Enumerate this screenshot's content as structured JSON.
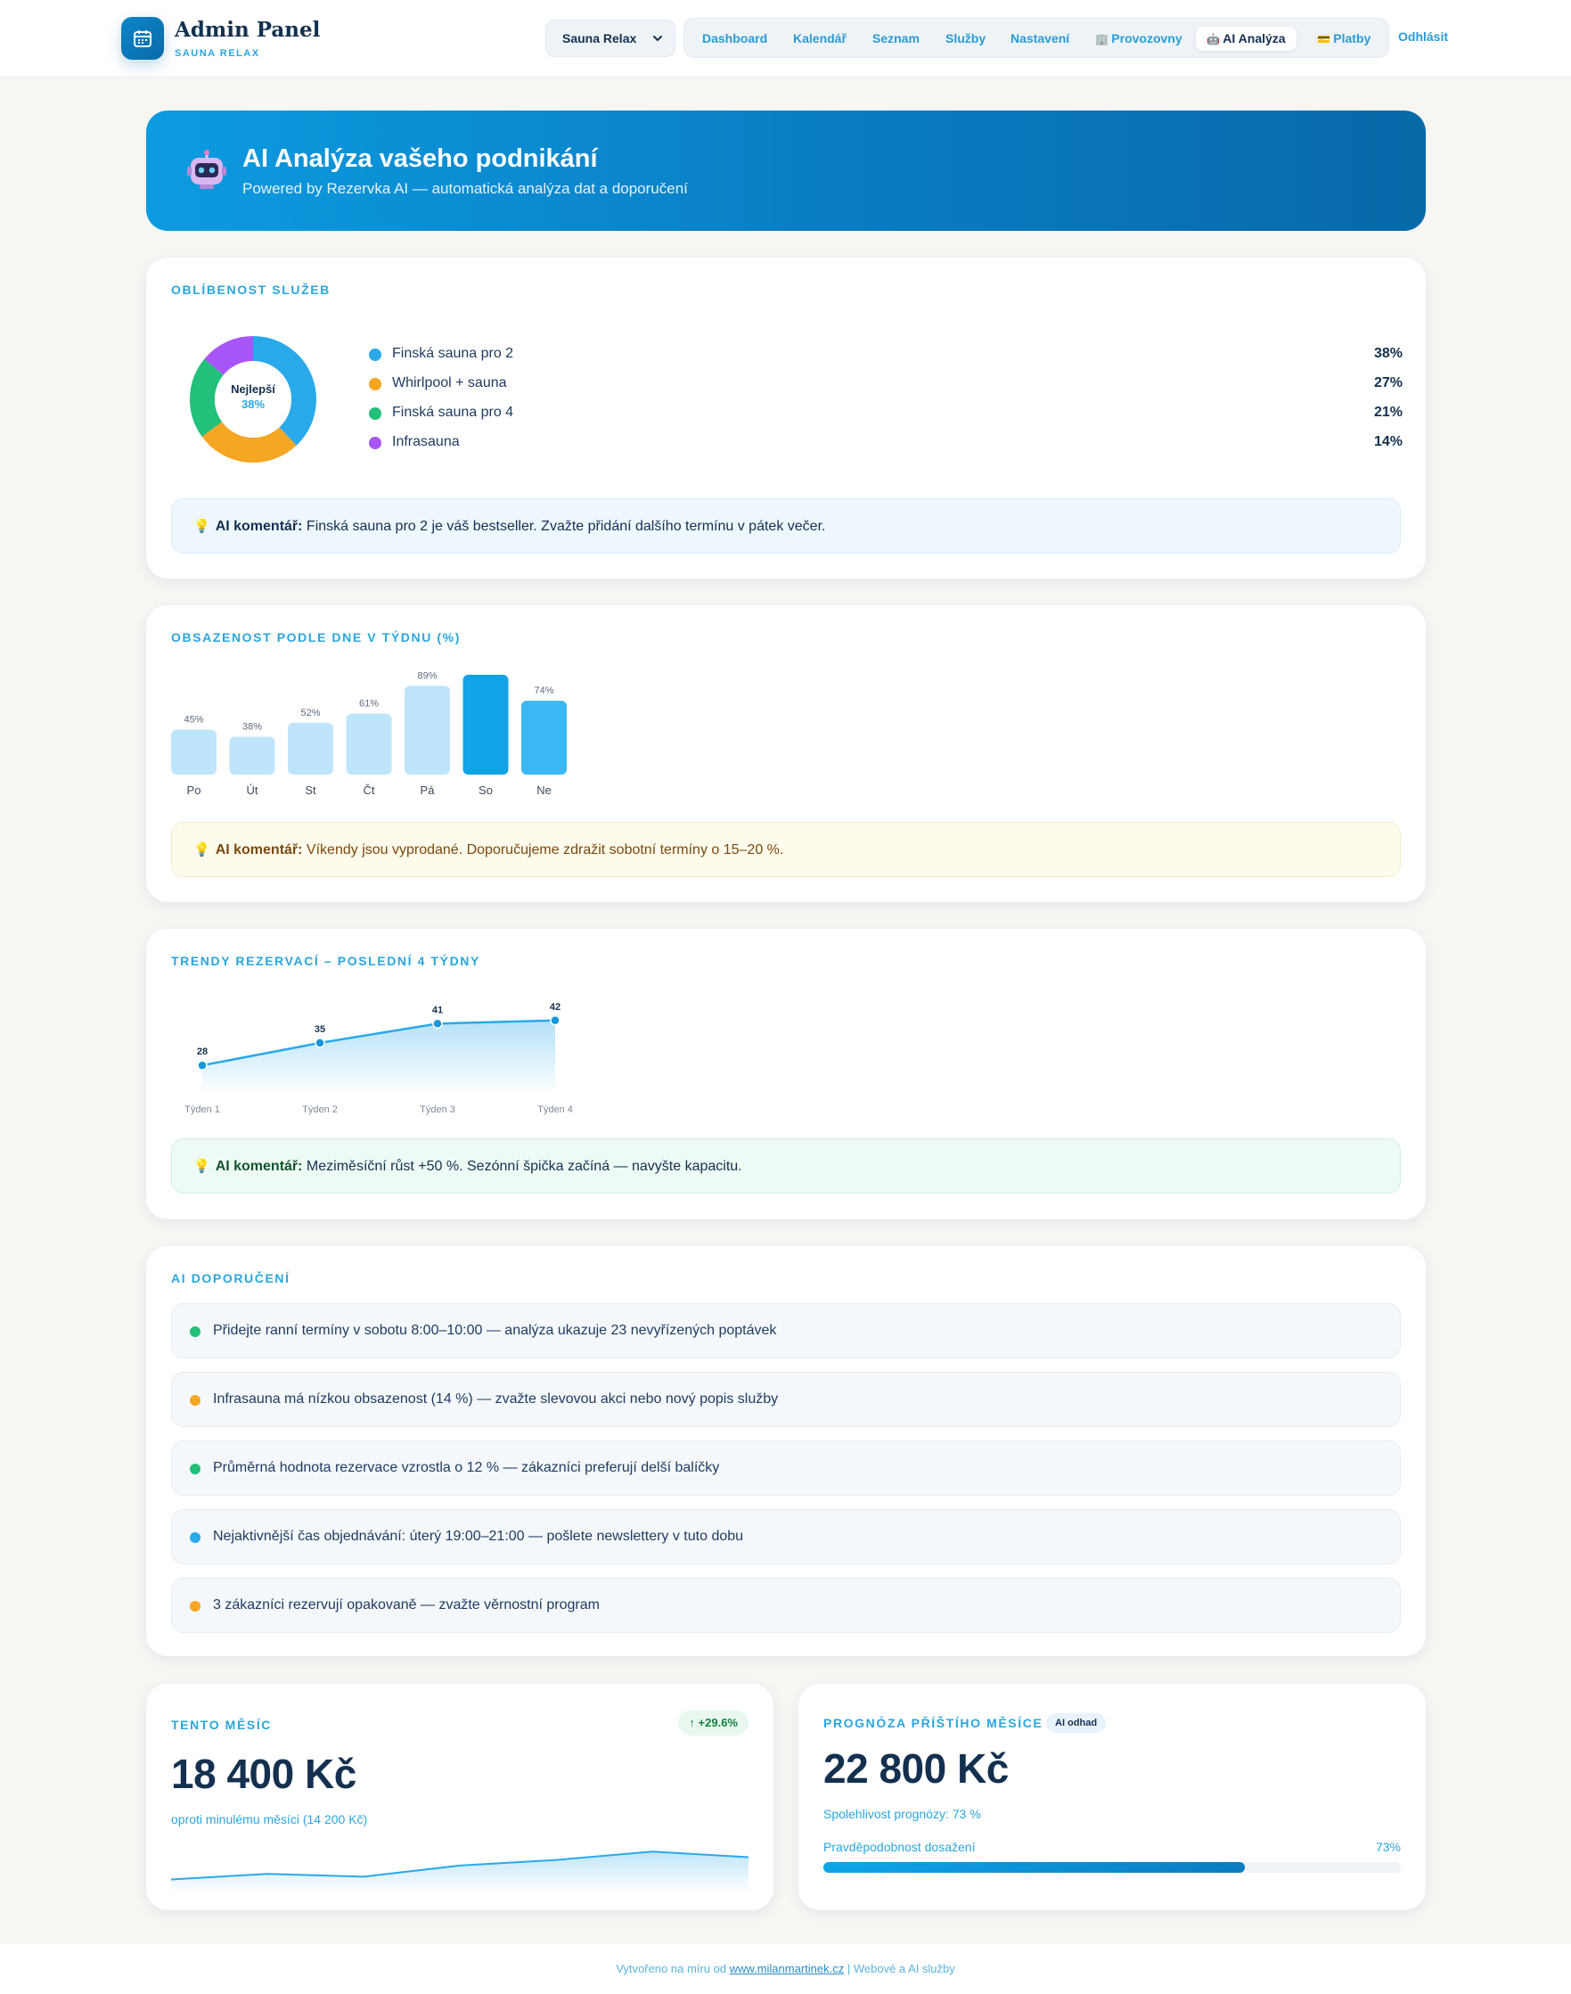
{
  "header": {
    "title": "Admin Panel",
    "subtitle": "SAUNA RELAX",
    "location_select": "Sauna Relax",
    "nav": [
      "Dashboard",
      "Kalendář",
      "Seznam",
      "Služby",
      "Nastavení",
      "Provozovny",
      "AI Analýza",
      "Platby"
    ],
    "active_nav": "AI Analýza",
    "logout": "Odhlásit"
  },
  "hero": {
    "title": "AI Analýza vašeho podnikání",
    "subtitle": "Powered by Rezervka AI — automatická analýza dat a doporučení"
  },
  "popularity": {
    "title": "OBLÍBENOST SLUŽEB",
    "center_label": "Nejlepší",
    "center_value": "38%",
    "items": [
      {
        "label": "Finská sauna pro 2",
        "value": "38%",
        "color": "#29a9ea"
      },
      {
        "label": "Whirlpool + sauna",
        "value": "27%",
        "color": "#f5a623"
      },
      {
        "label": "Finská sauna pro 4",
        "value": "21%",
        "color": "#22c07a"
      },
      {
        "label": "Infrasauna",
        "value": "14%",
        "color": "#a855f7"
      }
    ],
    "comment_label": "AI komentář:",
    "comment_text": " Finská sauna pro 2 je váš bestseller. Zvažte přidání dalšího termínu v pátek večer."
  },
  "occupancy": {
    "title": "OBSAZENOST PODLE DNE V TÝDNU (%)",
    "comment_label": "AI komentář:",
    "comment_text": " Víkendy jsou vyprodané. Doporučujeme zdražit sobotní termíny o 15–20 %."
  },
  "trends": {
    "title": "TRENDY REZERVACÍ – POSLEDNÍ 4 TÝDNY",
    "comment_label": "AI komentář:",
    "comment_text": " Meziměsíční růst +50 %. Sezónní špička začíná — navyšte kapacitu."
  },
  "recommendations": {
    "title": "AI DOPORUČENÍ",
    "items": [
      {
        "text": "Přidejte ranní termíny v sobotu 8:00–10:00 — analýza ukazuje 23 nevyřízených poptávek",
        "color": "#22c07a"
      },
      {
        "text": "Infrasauna má nízkou obsazenost (14 %) — zvažte slevovou akci nebo nový popis služby",
        "color": "#f5a623"
      },
      {
        "text": "Průměrná hodnota rezervace vzrostla o 12 % — zákazníci preferují delší balíčky",
        "color": "#22c07a"
      },
      {
        "text": "Nejaktivnější čas objednávání: úterý 19:00–21:00 — pošlete newslettery v tuto dobu",
        "color": "#29a9ea"
      },
      {
        "text": "3 zákazníci rezervují opakovaně — zvažte věrnostní program",
        "color": "#f5a623"
      }
    ]
  },
  "this_month": {
    "title": "TENTO MĚSÍC",
    "badge": "↑ +29.6%",
    "value": "18 400 Kč",
    "note": "oproti minulému měsíci (14 200 Kč)",
    "sparkline": [
      12,
      14,
      13,
      17,
      19,
      22,
      20
    ]
  },
  "forecast": {
    "title": "PROGNÓZA PŘÍŠTÍHO MĚSÍCE",
    "badge": "AI odhad",
    "value": "22 800 Kč",
    "reliability": "Spolehlivost prognózy: 73 %",
    "probability_label": "Pravděpodobnost dosažení",
    "probability_value": "73%",
    "probability": 0.73
  },
  "footer": {
    "prefix": "Vytvořeno na míru od ",
    "link": "www.milanmartinek.cz",
    "suffix": " | Webové a AI služby"
  },
  "chart_data": [
    {
      "type": "pie",
      "title": "OBLÍBENOST SLUŽEB",
      "categories": [
        "Finská sauna pro 2",
        "Whirlpool + sauna",
        "Finská sauna pro 4",
        "Infrasauna"
      ],
      "values": [
        38,
        27,
        21,
        14
      ],
      "colors": [
        "#29a9ea",
        "#f5a623",
        "#22c07a",
        "#a855f7"
      ]
    },
    {
      "type": "bar",
      "title": "OBSAZENOST PODLE DNE V TÝDNU (%)",
      "categories": [
        "Po",
        "Út",
        "St",
        "Čt",
        "Pá",
        "So",
        "Ne"
      ],
      "values": [
        45,
        38,
        52,
        61,
        89,
        100,
        74
      ],
      "data_labels": [
        "45%",
        "38%",
        "52%",
        "61%",
        "89%",
        "",
        "74%"
      ],
      "colors": [
        "#bfe5fb",
        "#bfe5fb",
        "#bfe5fb",
        "#bfe5fb",
        "#bfe5fb",
        "#12a3e6",
        "#3ab8f3"
      ],
      "ylim": [
        0,
        100
      ]
    },
    {
      "type": "line",
      "title": "TRENDY REZERVACÍ – POSLEDNÍ 4 TÝDNY",
      "categories": [
        "Týden 1",
        "Týden 2",
        "Týden 3",
        "Týden 4"
      ],
      "values": [
        28,
        35,
        41,
        42
      ]
    }
  ]
}
